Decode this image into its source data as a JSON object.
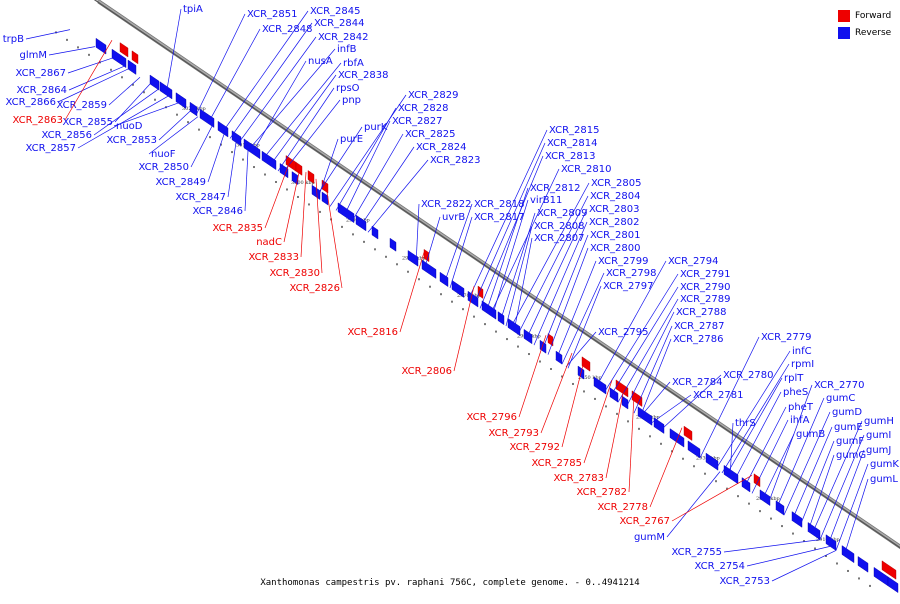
{
  "legend": [
    {
      "label": "Forward",
      "color": "#ee0000"
    },
    {
      "label": "Reverse",
      "color": "#1010ee"
    }
  ],
  "caption": "Xanthomonas campestris pv. raphani 756C, complete genome. - 0..4941214",
  "colors": {
    "forward": "#ee0000",
    "reverse": "#1010ee",
    "axis": "#777777",
    "tick_text": "#333333"
  },
  "ticks": [
    "3020 kbp",
    "3010 kbp",
    "3000 kbp",
    "2990 kbp",
    "2980 kbp",
    "2970 kbp",
    "2960 kbp",
    "2950 kbp",
    "2940 kbp",
    "2930 kbp",
    "2920 kbp",
    "2910 kbp"
  ],
  "reverse_labels": [
    "trpB",
    "glmM",
    "XCR_2867",
    "XCR_2864",
    "XCR_2866",
    "XCR_2859",
    "XCR_2855",
    "XCR_2856",
    "XCR_2857",
    "nuoD",
    "XCR_2853",
    "nuoF",
    "XCR_2850",
    "XCR_2849",
    "XCR_2847",
    "XCR_2846",
    "tpiA",
    "XCR_2851",
    "XCR_2848",
    "XCR_2845",
    "XCR_2844",
    "XCR_2842",
    "infB",
    "nusA",
    "rbfA",
    "XCR_2838",
    "rpsO",
    "pnp",
    "XCR_2829",
    "XCR_2828",
    "XCR_2827",
    "purK",
    "XCR_2825",
    "purE",
    "XCR_2824",
    "XCR_2823",
    "XCR_2822",
    "uvrB",
    "XCR_2818",
    "XCR_2817",
    "XCR_2815",
    "XCR_2814",
    "XCR_2813",
    "XCR_2810",
    "XCR_2812",
    "virB11",
    "XCR_2805",
    "XCR_2804",
    "XCR_2803",
    "XCR_2809",
    "XCR_2808",
    "XCR_2802",
    "XCR_2807",
    "XCR_2801",
    "XCR_2800",
    "XCR_2799",
    "XCR_2798",
    "XCR_2797",
    "XCR_2794",
    "XCR_2791",
    "XCR_2790",
    "XCR_2789",
    "XCR_2788",
    "XCR_2787",
    "XCR_2786",
    "XCR_2795",
    "XCR_2784",
    "XCR_2781",
    "XCR_2780",
    "XCR_2779",
    "infC",
    "rpmI",
    "rplT",
    "pheS",
    "pheT",
    "ihfA",
    "thrS",
    "gumB",
    "XCR_2770",
    "gumC",
    "gumD",
    "gumE",
    "gumF",
    "gumG",
    "gumH",
    "gumI",
    "gumJ",
    "gumK",
    "gumL",
    "gumM",
    "XCR_2755",
    "XCR_2754",
    "XCR_2753"
  ],
  "forward_labels": [
    "XCR_2863",
    "XCR_2835",
    "nadC",
    "XCR_2833",
    "XCR_2830",
    "XCR_2826",
    "XCR_2816",
    "XCR_2806",
    "XCR_2796",
    "XCR_2793",
    "XCR_2792",
    "XCR_2785",
    "XCR_2783",
    "XCR_2782",
    "XCR_2778",
    "XCR_2767"
  ]
}
